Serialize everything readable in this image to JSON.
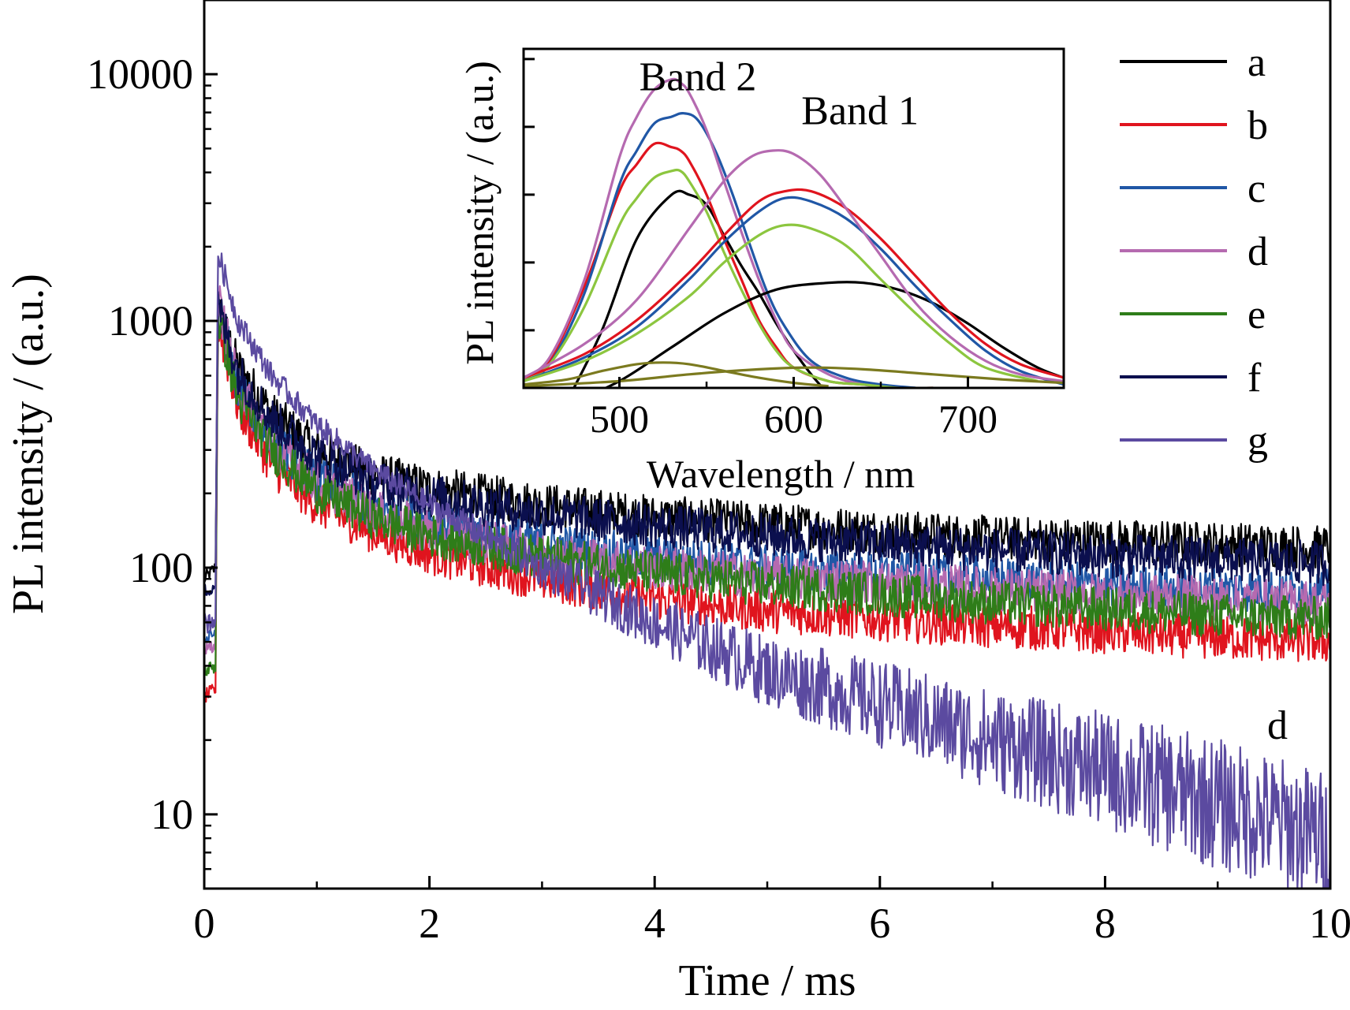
{
  "chart_data": [
    {
      "id": "main",
      "type": "line",
      "xlabel": "Time / ms",
      "ylabel": "PL intensity / (a.u.)",
      "xlim": [
        0,
        10
      ],
      "ylim": [
        5,
        20000
      ],
      "yscale": "log",
      "x_ticks": [
        0,
        2,
        4,
        6,
        8,
        10
      ],
      "x_tick_labels": [
        "0",
        "2",
        "4",
        "6",
        "8",
        "10"
      ],
      "y_ticks": [
        10,
        100,
        1000,
        10000
      ],
      "y_tick_labels": [
        "10",
        "100",
        "1000",
        "10000"
      ],
      "legend_position": "top-right (outside plot)",
      "legend": [
        "a",
        "b",
        "c",
        "d",
        "e",
        "f",
        "g"
      ],
      "series": [
        {
          "name": "a",
          "color": "#000000",
          "x": [
            0,
            0.1,
            0.12,
            0.3,
            0.6,
            1,
            1.5,
            2,
            3,
            4,
            5,
            6,
            7,
            8,
            9,
            10
          ],
          "y": [
            90,
            100,
            1100,
            650,
            420,
            300,
            240,
            210,
            180,
            160,
            150,
            140,
            132,
            128,
            125,
            120
          ]
        },
        {
          "name": "b",
          "color": "#e0141e",
          "x": [
            0,
            0.1,
            0.12,
            0.3,
            0.6,
            1,
            1.5,
            2,
            3,
            4,
            5,
            6,
            7,
            8,
            9,
            10
          ],
          "y": [
            30,
            32,
            1000,
            450,
            260,
            180,
            140,
            115,
            90,
            75,
            67,
            62,
            58,
            55,
            52,
            50
          ]
        },
        {
          "name": "c",
          "color": "#2057a6",
          "x": [
            0,
            0.1,
            0.12,
            0.3,
            0.6,
            1,
            1.5,
            2,
            3,
            4,
            5,
            6,
            7,
            8,
            9,
            10
          ],
          "y": [
            50,
            55,
            1200,
            540,
            330,
            230,
            180,
            155,
            125,
            110,
            100,
            95,
            90,
            85,
            82,
            80
          ]
        },
        {
          "name": "d",
          "color": "#b56ab0",
          "x": [
            0,
            0.1,
            0.12,
            0.3,
            0.6,
            1,
            1.5,
            2,
            3,
            4,
            5,
            6,
            7,
            8,
            9,
            10
          ],
          "y": [
            45,
            50,
            1250,
            550,
            320,
            220,
            170,
            140,
            115,
            100,
            92,
            87,
            82,
            78,
            75,
            72
          ]
        },
        {
          "name": "e",
          "color": "#2e7d19",
          "x": [
            0,
            0.1,
            0.12,
            0.3,
            0.6,
            1,
            1.5,
            2,
            3,
            4,
            5,
            6,
            7,
            8,
            9,
            10
          ],
          "y": [
            38,
            40,
            1050,
            480,
            300,
            205,
            160,
            135,
            110,
            95,
            85,
            78,
            72,
            68,
            64,
            62
          ]
        },
        {
          "name": "f",
          "color": "#0b0f4e",
          "x": [
            0,
            0.1,
            0.12,
            0.3,
            0.6,
            1,
            1.5,
            2,
            3,
            4,
            5,
            6,
            7,
            8,
            9,
            10
          ],
          "y": [
            80,
            85,
            1150,
            620,
            400,
            285,
            225,
            195,
            165,
            148,
            135,
            125,
            118,
            112,
            108,
            104
          ]
        },
        {
          "name": "g",
          "color": "#5b4aa0",
          "x": [
            0,
            0.1,
            0.12,
            0.3,
            0.6,
            1,
            1.5,
            2,
            3,
            4,
            5,
            6,
            7,
            8,
            9,
            10
          ],
          "y": [
            60,
            62,
            1900,
            1000,
            600,
            380,
            250,
            180,
            100,
            60,
            38,
            28,
            20,
            15,
            11,
            8
          ]
        }
      ],
      "annotations": [
        {
          "text": "d",
          "x": 9.2,
          "y": 20
        }
      ]
    },
    {
      "id": "inset",
      "type": "line",
      "xlabel": "Wavelength / nm",
      "ylabel": "PL intensity / (a.u.)",
      "xlim": [
        445,
        755
      ],
      "ylim": [
        0,
        100
      ],
      "x_ticks": [
        500,
        600,
        700
      ],
      "x_tick_labels": [
        "500",
        "600",
        "700"
      ],
      "y_ticks": [
        17,
        37,
        57,
        77,
        97
      ],
      "y_tick_labels": [],
      "annotations": [
        {
          "text": "Band 2",
          "x": 545,
          "y": 92
        },
        {
          "text": "Band 1",
          "x": 620,
          "y": 82
        }
      ],
      "series": [
        {
          "color": "#000000",
          "x": [
            445,
            470,
            490,
            510,
            530,
            540,
            550,
            560,
            570,
            580,
            590,
            600,
            610,
            620
          ],
          "y": [
            -30,
            -4,
            17,
            44,
            57,
            57,
            54,
            45,
            36,
            28,
            19,
            11,
            4,
            -2
          ]
        },
        {
          "color": "#e0141e",
          "x": [
            445,
            460,
            480,
            500,
            510,
            520,
            530,
            535,
            540,
            550,
            560,
            570,
            580,
            590,
            600,
            620,
            640,
            660,
            680
          ],
          "y": [
            2,
            8,
            30,
            58,
            66,
            72,
            71,
            70,
            67,
            57,
            44,
            32,
            20,
            12,
            6,
            2,
            1,
            0,
            0
          ]
        },
        {
          "color": "#2057a6",
          "x": [
            445,
            460,
            480,
            500,
            510,
            520,
            530,
            537,
            545,
            555,
            565,
            575,
            585,
            595,
            610,
            630,
            650,
            670
          ],
          "y": [
            2,
            7,
            28,
            60,
            70,
            78,
            80,
            81,
            79,
            70,
            57,
            42,
            28,
            18,
            8,
            3,
            1,
            0
          ]
        },
        {
          "color": "#b56ab0",
          "x": [
            445,
            460,
            480,
            500,
            510,
            520,
            530,
            535,
            540,
            550,
            560,
            570,
            580,
            590,
            600,
            620,
            640,
            660,
            680
          ],
          "y": [
            3,
            9,
            32,
            68,
            80,
            88,
            91,
            90,
            87,
            76,
            61,
            46,
            32,
            20,
            11,
            4,
            1,
            0,
            0
          ]
        },
        {
          "color": "#8cc63f",
          "x": [
            445,
            460,
            480,
            500,
            510,
            520,
            530,
            535,
            540,
            550,
            560,
            570,
            580,
            590,
            600,
            620,
            640,
            660,
            680
          ],
          "y": [
            2,
            7,
            24,
            48,
            56,
            62,
            64,
            64,
            61,
            52,
            40,
            29,
            19,
            11,
            6,
            2,
            1,
            0,
            0
          ]
        },
        {
          "color": "#000000",
          "x": [
            470,
            500,
            530,
            560,
            590,
            620,
            640,
            660,
            680,
            700,
            720,
            740,
            755
          ],
          "y": [
            -5,
            2,
            12,
            22,
            29,
            31,
            31,
            29,
            25,
            19,
            12,
            6,
            3
          ]
        },
        {
          "color": "#e0141e",
          "x": [
            445,
            480,
            510,
            540,
            560,
            580,
            595,
            610,
            630,
            650,
            670,
            690,
            710,
            730,
            755
          ],
          "y": [
            3,
            10,
            20,
            34,
            45,
            55,
            58,
            58,
            53,
            44,
            33,
            22,
            13,
            7,
            3
          ]
        },
        {
          "color": "#2057a6",
          "x": [
            445,
            480,
            510,
            540,
            560,
            580,
            595,
            610,
            630,
            650,
            670,
            690,
            710,
            730,
            755
          ],
          "y": [
            2,
            9,
            18,
            32,
            43,
            52,
            56,
            55,
            50,
            41,
            30,
            20,
            11,
            5,
            1
          ]
        },
        {
          "color": "#b56ab0",
          "x": [
            445,
            480,
            510,
            540,
            560,
            575,
            588,
            600,
            615,
            630,
            650,
            670,
            690,
            710,
            730,
            755
          ],
          "y": [
            3,
            13,
            26,
            47,
            61,
            68,
            70,
            69,
            63,
            53,
            39,
            25,
            15,
            8,
            4,
            2
          ]
        },
        {
          "color": "#8cc63f",
          "x": [
            445,
            480,
            510,
            540,
            560,
            580,
            595,
            610,
            630,
            650,
            670,
            690,
            710,
            740
          ],
          "y": [
            2,
            8,
            16,
            27,
            37,
            45,
            48,
            47,
            42,
            32,
            22,
            13,
            6,
            2
          ]
        },
        {
          "color": "#7b7a1f",
          "x": [
            445,
            470,
            490,
            510,
            525,
            540,
            560,
            580,
            600,
            620
          ],
          "y": [
            1,
            2.5,
            5,
            7,
            7.5,
            7,
            5,
            3,
            1.5,
            0.5
          ]
        },
        {
          "color": "#7b7a1f",
          "x": [
            445,
            500,
            540,
            580,
            610,
            640,
            680,
            720,
            755
          ],
          "y": [
            0.5,
            2,
            4,
            5.5,
            6,
            5.5,
            4,
            2.5,
            1.5
          ]
        }
      ]
    }
  ]
}
